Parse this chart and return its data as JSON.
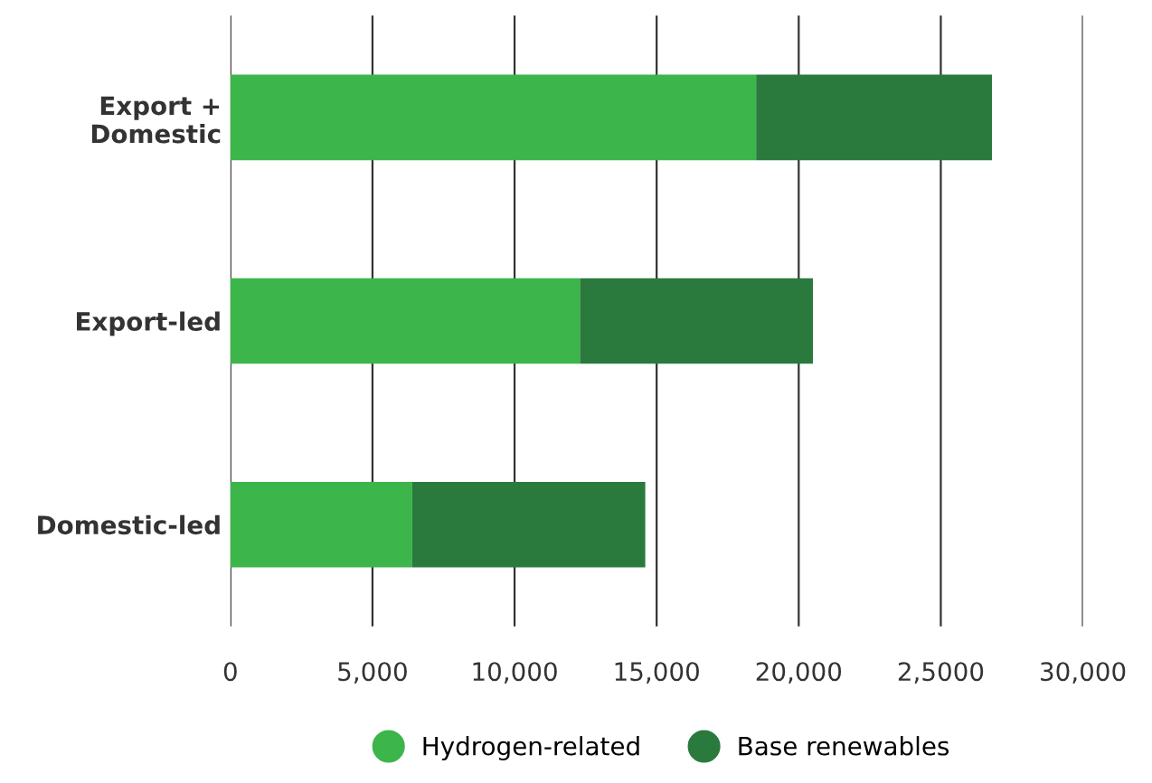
{
  "chart_data": {
    "type": "bar",
    "orientation": "horizontal",
    "stacked": true,
    "categories": [
      "Export +\nDomestic",
      "Export-led",
      "Domestic-led"
    ],
    "series": [
      {
        "name": "Hydrogen-related",
        "color": "#3cb54a",
        "values": [
          18500,
          12300,
          6400
        ]
      },
      {
        "name": "Base renewables",
        "color": "#2a7a3e",
        "values": [
          8300,
          8200,
          8200
        ]
      }
    ],
    "xlim": [
      0,
      30000
    ],
    "xticks": [
      0,
      {
        "value": 5000,
        "label": "5,000"
      },
      {
        "value": 10000,
        "label": "10,000"
      },
      {
        "value": 15000,
        "label": "15,000"
      },
      {
        "value": 20000,
        "label": "20,000"
      },
      {
        "value": 25000,
        "label": "2,5000"
      },
      {
        "value": 30000,
        "label": "30,000"
      }
    ],
    "grid": "x",
    "legend": "bottom"
  }
}
